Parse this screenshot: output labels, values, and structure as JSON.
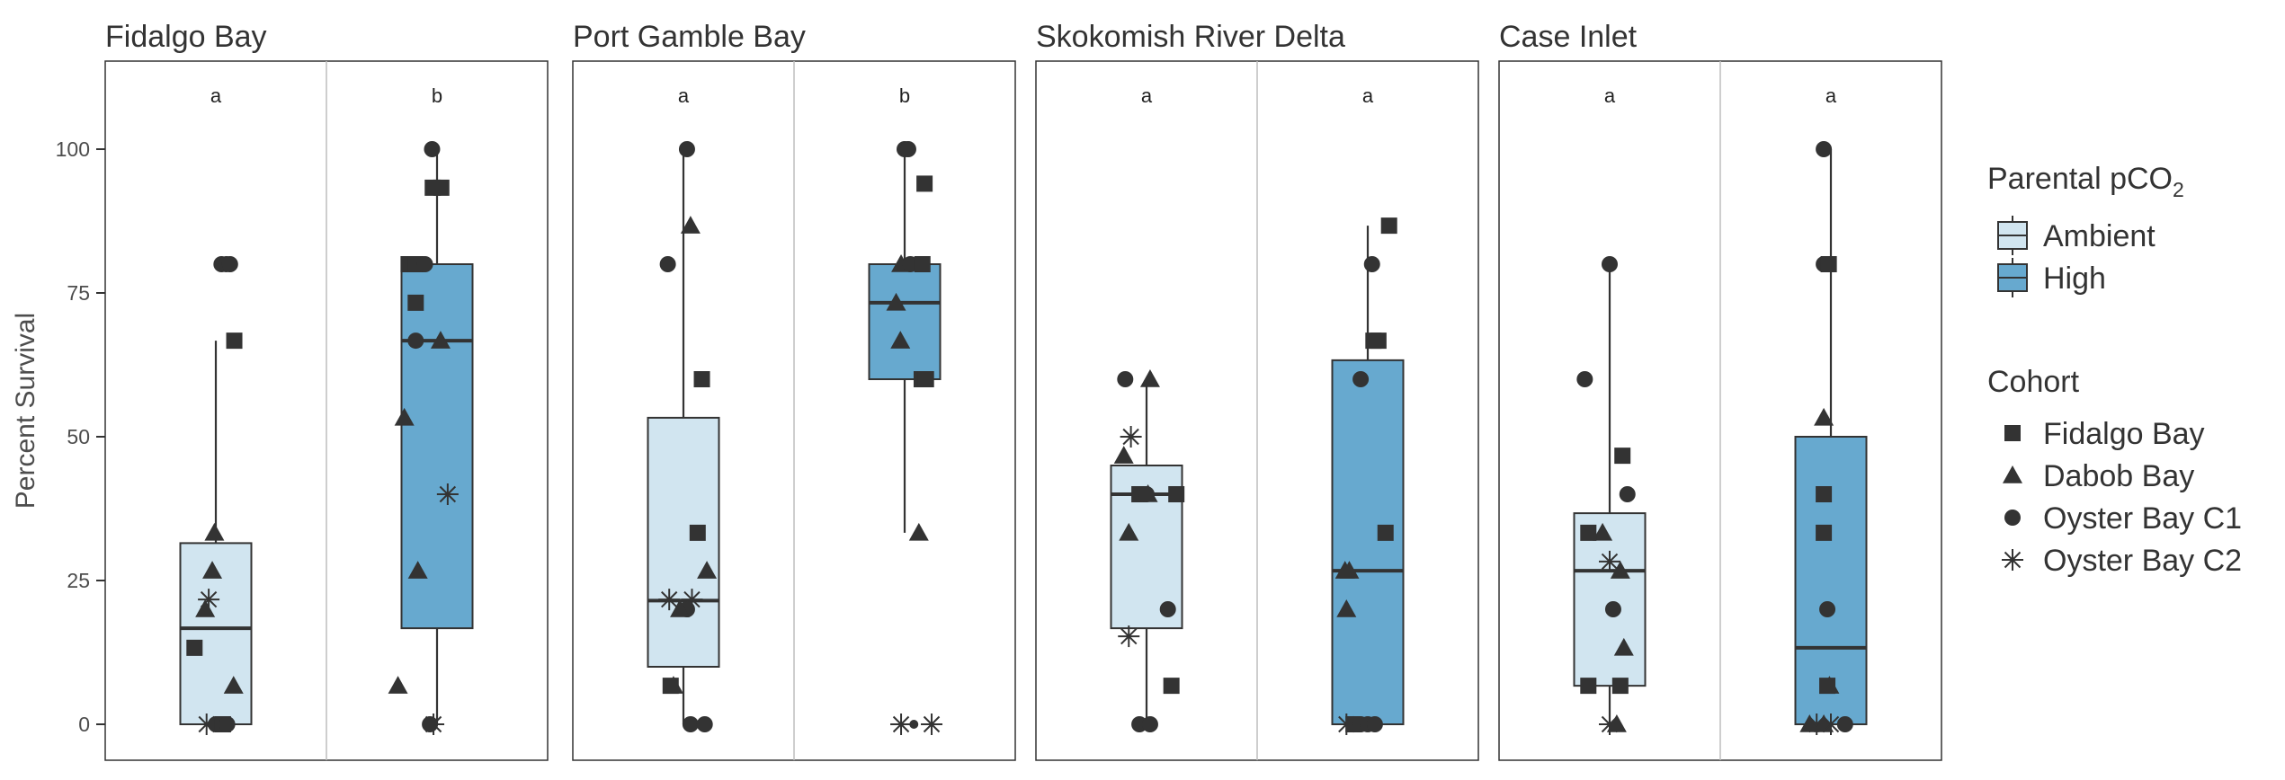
{
  "chart_data": {
    "type": "box",
    "ylabel": "Percent Survival",
    "yticks": [
      0,
      25,
      50,
      75,
      100
    ],
    "ylim": [
      -6,
      116
    ],
    "fill_colors": {
      "Ambient": "#d1e5f0",
      "High": "#67a9cf"
    },
    "groups": [
      "Ambient",
      "High"
    ],
    "shape_legend": {
      "Fidalgo Bay": "square",
      "Dabob Bay": "triangle",
      "Oyster Bay C1": "circle",
      "Oyster Bay C2": "asterisk"
    },
    "legend": {
      "fill_title": "Parental pCO",
      "fill_title_sub": "2",
      "fill_items": [
        "Ambient",
        "High"
      ],
      "shape_title": "Cohort",
      "shape_items": [
        "Fidalgo Bay",
        "Dabob Bay",
        "Oyster Bay C1",
        "Oyster Bay C2"
      ]
    },
    "facets": [
      {
        "title": "Fidalgo Bay",
        "letters": [
          "a",
          "b"
        ],
        "boxes": [
          {
            "group": "Ambient",
            "min": 0,
            "q1": 0,
            "median": 16.7,
            "q3": 31.5,
            "max": 66.7
          },
          {
            "group": "High",
            "min": 0,
            "q1": 16.7,
            "median": 66.7,
            "q3": 80,
            "max": 100
          }
        ],
        "points": [
          {
            "group": "Ambient",
            "shape": "circle",
            "y": 80,
            "dx": 0.08
          },
          {
            "group": "Ambient",
            "shape": "circle",
            "y": 80,
            "dx": 0.15
          },
          {
            "group": "Ambient",
            "shape": "circle",
            "y": 80,
            "dx": 0.2
          },
          {
            "group": "Ambient",
            "shape": "square",
            "y": 66.7,
            "dx": 0.26
          },
          {
            "group": "Ambient",
            "shape": "triangle",
            "y": 33.3,
            "dx": -0.02
          },
          {
            "group": "Ambient",
            "shape": "triangle",
            "y": 26.7,
            "dx": -0.05
          },
          {
            "group": "Ambient",
            "shape": "asterisk",
            "y": 21.7,
            "dx": -0.1
          },
          {
            "group": "Ambient",
            "shape": "triangle",
            "y": 20,
            "dx": -0.15
          },
          {
            "group": "Ambient",
            "shape": "square",
            "y": 13.3,
            "dx": -0.3
          },
          {
            "group": "Ambient",
            "shape": "triangle",
            "y": 6.7,
            "dx": 0.25
          },
          {
            "group": "Ambient",
            "shape": "asterisk",
            "y": 0,
            "dx": -0.13
          },
          {
            "group": "Ambient",
            "shape": "circle",
            "y": 0,
            "dx": 0.0
          },
          {
            "group": "Ambient",
            "shape": "square",
            "y": 0,
            "dx": 0.1
          },
          {
            "group": "Ambient",
            "shape": "circle",
            "y": 0,
            "dx": 0.16
          },
          {
            "group": "High",
            "shape": "circle",
            "y": 100,
            "dx": -0.07
          },
          {
            "group": "High",
            "shape": "square",
            "y": 93.3,
            "dx": -0.06
          },
          {
            "group": "High",
            "shape": "square",
            "y": 93.3,
            "dx": 0.06
          },
          {
            "group": "High",
            "shape": "square",
            "y": 80,
            "dx": -0.4
          },
          {
            "group": "High",
            "shape": "square",
            "y": 80,
            "dx": -0.3
          },
          {
            "group": "High",
            "shape": "circle",
            "y": 80,
            "dx": -0.17
          },
          {
            "group": "High",
            "shape": "square",
            "y": 73.3,
            "dx": -0.3
          },
          {
            "group": "High",
            "shape": "triangle",
            "y": 66.7,
            "dx": 0.05
          },
          {
            "group": "High",
            "shape": "circle",
            "y": 66.7,
            "dx": -0.3
          },
          {
            "group": "High",
            "shape": "triangle",
            "y": 53.3,
            "dx": -0.46
          },
          {
            "group": "High",
            "shape": "asterisk",
            "y": 40,
            "dx": 0.15
          },
          {
            "group": "High",
            "shape": "triangle",
            "y": 26.7,
            "dx": -0.27
          },
          {
            "group": "High",
            "shape": "triangle",
            "y": 6.7,
            "dx": -0.55
          },
          {
            "group": "High",
            "shape": "circle",
            "y": 0,
            "dx": -0.1
          },
          {
            "group": "High",
            "shape": "asterisk",
            "y": 0,
            "dx": -0.05
          }
        ]
      },
      {
        "title": "Port Gamble Bay",
        "letters": [
          "a",
          "b"
        ],
        "boxes": [
          {
            "group": "Ambient",
            "min": 0,
            "q1": 10,
            "median": 21.5,
            "q3": 53.3,
            "max": 100
          },
          {
            "group": "High",
            "min": 33.3,
            "q1": 60,
            "median": 73.3,
            "q3": 80,
            "max": 100
          }
        ],
        "points": [
          {
            "group": "Ambient",
            "shape": "circle",
            "y": 100,
            "dx": 0.05
          },
          {
            "group": "Ambient",
            "shape": "triangle",
            "y": 86.7,
            "dx": 0.1
          },
          {
            "group": "Ambient",
            "shape": "circle",
            "y": 80,
            "dx": -0.22
          },
          {
            "group": "Ambient",
            "shape": "square",
            "y": 60,
            "dx": 0.26
          },
          {
            "group": "Ambient",
            "shape": "square",
            "y": 33.3,
            "dx": 0.2
          },
          {
            "group": "Ambient",
            "shape": "triangle",
            "y": 26.7,
            "dx": 0.33
          },
          {
            "group": "Ambient",
            "shape": "asterisk",
            "y": 21.7,
            "dx": -0.2
          },
          {
            "group": "Ambient",
            "shape": "asterisk",
            "y": 21.7,
            "dx": 0.12
          },
          {
            "group": "Ambient",
            "shape": "circle",
            "y": 20,
            "dx": 0.05
          },
          {
            "group": "Ambient",
            "shape": "triangle",
            "y": 20,
            "dx": -0.05
          },
          {
            "group": "Ambient",
            "shape": "square",
            "y": 6.7,
            "dx": -0.18
          },
          {
            "group": "Ambient",
            "shape": "triangle",
            "y": 6.7,
            "dx": -0.14
          },
          {
            "group": "Ambient",
            "shape": "circle",
            "y": 0,
            "dx": 0.1
          },
          {
            "group": "Ambient",
            "shape": "circle",
            "y": 0,
            "dx": 0.3
          },
          {
            "group": "High",
            "shape": "circle",
            "y": 100,
            "dx": 0.0
          },
          {
            "group": "High",
            "shape": "circle",
            "y": 100,
            "dx": 0.05
          },
          {
            "group": "High",
            "shape": "square",
            "y": 94,
            "dx": 0.28
          },
          {
            "group": "High",
            "shape": "triangle",
            "y": 80,
            "dx": -0.05
          },
          {
            "group": "High",
            "shape": "circle",
            "y": 80,
            "dx": 0.08
          },
          {
            "group": "High",
            "shape": "square",
            "y": 80,
            "dx": 0.25
          },
          {
            "group": "High",
            "shape": "triangle",
            "y": 73.3,
            "dx": -0.12
          },
          {
            "group": "High",
            "shape": "triangle",
            "y": 66.7,
            "dx": -0.06
          },
          {
            "group": "High",
            "shape": "square",
            "y": 60,
            "dx": 0.24
          },
          {
            "group": "High",
            "shape": "square",
            "y": 60,
            "dx": 0.3
          },
          {
            "group": "High",
            "shape": "triangle",
            "y": 33.3,
            "dx": 0.2
          },
          {
            "group": "High",
            "shape": "asterisk",
            "y": 0,
            "dx": -0.05
          },
          {
            "group": "High",
            "shape": "circle",
            "y": 0,
            "dx": 0.13,
            "small": true
          },
          {
            "group": "High",
            "shape": "asterisk",
            "y": 0,
            "dx": 0.38
          }
        ]
      },
      {
        "title": "Skokomish River Delta",
        "letters": [
          "a",
          "a"
        ],
        "boxes": [
          {
            "group": "Ambient",
            "min": 0,
            "q1": 16.7,
            "median": 40,
            "q3": 45,
            "max": 60
          },
          {
            "group": "High",
            "min": 0,
            "q1": 0,
            "median": 26.7,
            "q3": 63.3,
            "max": 86.7
          }
        ],
        "points": [
          {
            "group": "Ambient",
            "shape": "circle",
            "y": 60,
            "dx": -0.3
          },
          {
            "group": "Ambient",
            "shape": "triangle",
            "y": 60,
            "dx": 0.05
          },
          {
            "group": "Ambient",
            "shape": "asterisk",
            "y": 50,
            "dx": -0.22
          },
          {
            "group": "Ambient",
            "shape": "triangle",
            "y": 46.7,
            "dx": -0.32
          },
          {
            "group": "Ambient",
            "shape": "triangle",
            "y": 40,
            "dx": 0.02
          },
          {
            "group": "Ambient",
            "shape": "square",
            "y": 40,
            "dx": -0.1
          },
          {
            "group": "Ambient",
            "shape": "circle",
            "y": 40,
            "dx": 0.0
          },
          {
            "group": "Ambient",
            "shape": "square",
            "y": 40,
            "dx": 0.42
          },
          {
            "group": "Ambient",
            "shape": "triangle",
            "y": 33.3,
            "dx": -0.25
          },
          {
            "group": "Ambient",
            "shape": "circle",
            "y": 20,
            "dx": 0.3
          },
          {
            "group": "Ambient",
            "shape": "asterisk",
            "y": 15.3,
            "dx": -0.25
          },
          {
            "group": "Ambient",
            "shape": "square",
            "y": 6.7,
            "dx": 0.35
          },
          {
            "group": "Ambient",
            "shape": "circle",
            "y": 0,
            "dx": -0.1
          },
          {
            "group": "Ambient",
            "shape": "circle",
            "y": 0,
            "dx": 0.05
          },
          {
            "group": "High",
            "shape": "square",
            "y": 86.7,
            "dx": 0.3
          },
          {
            "group": "High",
            "shape": "circle",
            "y": 80,
            "dx": 0.06
          },
          {
            "group": "High",
            "shape": "square",
            "y": 66.7,
            "dx": 0.08
          },
          {
            "group": "High",
            "shape": "square",
            "y": 66.7,
            "dx": 0.15
          },
          {
            "group": "High",
            "shape": "circle",
            "y": 60,
            "dx": -0.1
          },
          {
            "group": "High",
            "shape": "square",
            "y": 33.3,
            "dx": 0.25
          },
          {
            "group": "High",
            "shape": "triangle",
            "y": 26.7,
            "dx": -0.32
          },
          {
            "group": "High",
            "shape": "triangle",
            "y": 26.7,
            "dx": -0.26
          },
          {
            "group": "High",
            "shape": "triangle",
            "y": 20,
            "dx": -0.3
          },
          {
            "group": "High",
            "shape": "asterisk",
            "y": 0,
            "dx": -0.3
          },
          {
            "group": "High",
            "shape": "square",
            "y": 0,
            "dx": -0.2
          },
          {
            "group": "High",
            "shape": "circle",
            "y": 0,
            "dx": -0.1
          },
          {
            "group": "High",
            "shape": "circle",
            "y": 0,
            "dx": 0.0
          },
          {
            "group": "High",
            "shape": "circle",
            "y": 0,
            "dx": 0.1
          }
        ]
      },
      {
        "title": "Case Inlet",
        "letters": [
          "a",
          "a"
        ],
        "boxes": [
          {
            "group": "Ambient",
            "min": 0,
            "q1": 6.7,
            "median": 26.7,
            "q3": 36.7,
            "max": 80
          },
          {
            "group": "High",
            "min": 0,
            "q1": 0,
            "median": 13.3,
            "q3": 50,
            "max": 100
          }
        ],
        "points": [
          {
            "group": "Ambient",
            "shape": "circle",
            "y": 80,
            "dx": 0.0
          },
          {
            "group": "Ambient",
            "shape": "circle",
            "y": 60,
            "dx": -0.35
          },
          {
            "group": "Ambient",
            "shape": "square",
            "y": 46.7,
            "dx": 0.18
          },
          {
            "group": "Ambient",
            "shape": "circle",
            "y": 40,
            "dx": 0.25
          },
          {
            "group": "Ambient",
            "shape": "triangle",
            "y": 33.3,
            "dx": -0.1
          },
          {
            "group": "Ambient",
            "shape": "square",
            "y": 33.3,
            "dx": -0.3
          },
          {
            "group": "Ambient",
            "shape": "asterisk",
            "y": 28.3,
            "dx": 0.0
          },
          {
            "group": "Ambient",
            "shape": "triangle",
            "y": 26.7,
            "dx": 0.15
          },
          {
            "group": "Ambient",
            "shape": "circle",
            "y": 20,
            "dx": 0.05
          },
          {
            "group": "Ambient",
            "shape": "triangle",
            "y": 13.3,
            "dx": 0.2
          },
          {
            "group": "Ambient",
            "shape": "square",
            "y": 6.7,
            "dx": -0.3
          },
          {
            "group": "Ambient",
            "shape": "square",
            "y": 6.7,
            "dx": 0.15
          },
          {
            "group": "Ambient",
            "shape": "asterisk",
            "y": 0,
            "dx": 0.0
          },
          {
            "group": "Ambient",
            "shape": "triangle",
            "y": 0,
            "dx": 0.1
          },
          {
            "group": "High",
            "shape": "circle",
            "y": 100,
            "dx": -0.1
          },
          {
            "group": "High",
            "shape": "circle",
            "y": 80,
            "dx": -0.1
          },
          {
            "group": "High",
            "shape": "square",
            "y": 80,
            "dx": -0.03
          },
          {
            "group": "High",
            "shape": "triangle",
            "y": 53.3,
            "dx": -0.1
          },
          {
            "group": "High",
            "shape": "square",
            "y": 40,
            "dx": -0.1
          },
          {
            "group": "High",
            "shape": "square",
            "y": 33.3,
            "dx": -0.1
          },
          {
            "group": "High",
            "shape": "circle",
            "y": 20,
            "dx": -0.05
          },
          {
            "group": "High",
            "shape": "triangle",
            "y": 6.7,
            "dx": -0.02
          },
          {
            "group": "High",
            "shape": "square",
            "y": 6.7,
            "dx": -0.05
          },
          {
            "group": "High",
            "shape": "triangle",
            "y": 0,
            "dx": -0.3
          },
          {
            "group": "High",
            "shape": "asterisk",
            "y": 0,
            "dx": -0.2
          },
          {
            "group": "High",
            "shape": "triangle",
            "y": 0,
            "dx": -0.1
          },
          {
            "group": "High",
            "shape": "asterisk",
            "y": 0,
            "dx": 0.0
          },
          {
            "group": "High",
            "shape": "circle",
            "y": 0,
            "dx": 0.2
          }
        ]
      }
    ]
  }
}
